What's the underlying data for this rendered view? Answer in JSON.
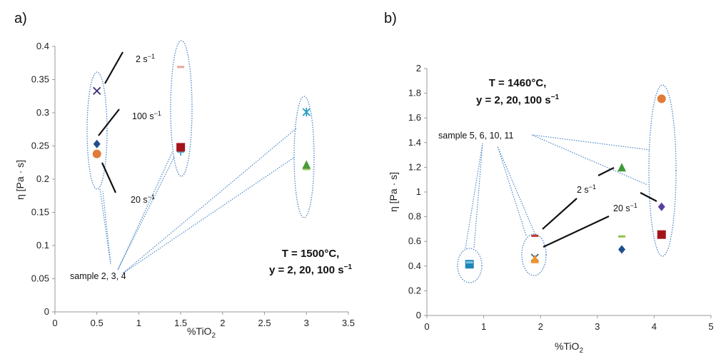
{
  "chart_data": [
    {
      "panel_label": "a)",
      "type": "scatter",
      "xlabel": "%TiO",
      "xlabel_sub": "2",
      "ylabel": "η [Pa · s]",
      "xlim": [
        0,
        3.5
      ],
      "ylim": [
        0,
        0.4
      ],
      "x_ticks": [
        "0",
        "0.5",
        "1",
        "1.5",
        "2",
        "2.5",
        "3",
        "3.5"
      ],
      "y_ticks": [
        "0",
        "0.05",
        "0.1",
        "0.15",
        "0.2",
        "0.25",
        "0.3",
        "0.35",
        "0.4"
      ],
      "points": [
        {
          "x": 0.5,
          "y": 0.333,
          "marker": "x",
          "color": "#3b2f7a"
        },
        {
          "x": 0.5,
          "y": 0.253,
          "marker": "diamond",
          "color": "#1f4e8c"
        },
        {
          "x": 0.5,
          "y": 0.238,
          "marker": "circle",
          "color": "#e07b39"
        },
        {
          "x": 1.5,
          "y": 0.369,
          "marker": "dash",
          "color": "#e8a39a"
        },
        {
          "x": 1.5,
          "y": 0.241,
          "marker": "plus",
          "color": "#4aa3c9"
        },
        {
          "x": 1.5,
          "y": 0.248,
          "marker": "square",
          "color": "#a3141a"
        },
        {
          "x": 3.0,
          "y": 0.301,
          "marker": "star",
          "color": "#2a9fc4"
        },
        {
          "x": 3.0,
          "y": 0.215,
          "marker": "dash",
          "color": "#a8cf6a"
        },
        {
          "x": 3.0,
          "y": 0.221,
          "marker": "triangle",
          "color": "#4a9a3a"
        }
      ],
      "annotations": {
        "rate_2": "2 s",
        "rate_100": "100 s",
        "rate_20": "20 s",
        "rate_sup": "−1",
        "samples": "sample 2, 3, 4",
        "cond_line1": "T = 1500°C,",
        "cond_line2": "y = 2, 20, 100 s",
        "cond_sup": "−1"
      }
    },
    {
      "panel_label": "b)",
      "type": "scatter",
      "xlabel": "%TiO",
      "xlabel_sub": "2",
      "ylabel": "η [Pa · s]",
      "xlim": [
        0,
        5
      ],
      "ylim": [
        0,
        2
      ],
      "x_ticks": [
        "0",
        "1",
        "2",
        "3",
        "4",
        "5"
      ],
      "y_ticks": [
        "0",
        "0.2",
        "0.4",
        "0.6",
        "0.8",
        "1",
        "1.2",
        "1.4",
        "1.6",
        "1.8",
        "2"
      ],
      "points": [
        {
          "x": 0.75,
          "y": 0.415,
          "marker": "square",
          "color": "#1d86b8"
        },
        {
          "x": 0.75,
          "y": 0.43,
          "marker": "dash",
          "color": "#7ec4dc"
        },
        {
          "x": 1.9,
          "y": 0.468,
          "marker": "x",
          "color": "#3d6b7a"
        },
        {
          "x": 1.9,
          "y": 0.452,
          "marker": "triangle",
          "color": "#f0932b"
        },
        {
          "x": 1.9,
          "y": 0.645,
          "marker": "dash",
          "color": "#c0392b"
        },
        {
          "x": 3.43,
          "y": 1.195,
          "marker": "triangle",
          "color": "#3e9a3a"
        },
        {
          "x": 3.43,
          "y": 0.64,
          "marker": "dash",
          "color": "#8fc24a"
        },
        {
          "x": 3.43,
          "y": 0.535,
          "marker": "diamond",
          "color": "#1f4e8c"
        },
        {
          "x": 4.13,
          "y": 1.755,
          "marker": "circle",
          "color": "#e07b39"
        },
        {
          "x": 4.13,
          "y": 0.88,
          "marker": "diamond",
          "color": "#5b3fa3"
        },
        {
          "x": 4.13,
          "y": 0.655,
          "marker": "square",
          "color": "#a3141a"
        }
      ],
      "annotations": {
        "samples": "sample 5, 6, 10, 11",
        "rate_2": "2 s",
        "rate_20": "20 s",
        "rate_sup": "−1",
        "cond_line1": "T = 1460°C,",
        "cond_line2": "y = 2, 20, 100 s",
        "cond_sup": "−1"
      }
    }
  ]
}
